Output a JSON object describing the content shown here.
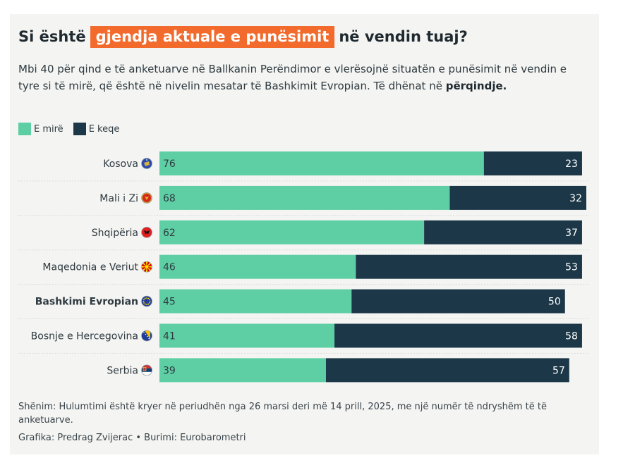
{
  "title": {
    "before": "Si është",
    "highlight": "gjendja aktuale e punësimit",
    "after": "në vendin tuaj?"
  },
  "subtitle": {
    "text": "Mbi 40 për qind e të anketuarve në Ballkanin Perëndimor e vlerësojnë situatën e punësimit në vendin e tyre si të mirë, që është në nivelin mesatar të Bashkimit Evropian. Të dhënat në",
    "bold": "përqindje."
  },
  "colors": {
    "good": "#5ecfa5",
    "bad": "#1c3848",
    "highlight": "#f26b2c",
    "label_light": "#ffffff",
    "label_dark": "#2e3a40"
  },
  "chart_data": {
    "type": "bar",
    "orientation": "horizontal-stacked",
    "categories": [
      "Kosova",
      "Mali i Zi",
      "Shqipëria",
      "Maqedonia e Veriut",
      "Bashkimi Evropian",
      "Bosnje e Hercegovina",
      "Serbia"
    ],
    "flag_icons": [
      "kosovo-flag-icon",
      "montenegro-flag-icon",
      "albania-flag-icon",
      "north-macedonia-flag-icon",
      "eu-flag-icon",
      "bosnia-flag-icon",
      "serbia-flag-icon"
    ],
    "bold_category": "Bashkimi Evropian",
    "series": [
      {
        "name": "E mirë",
        "values": [
          76,
          68,
          62,
          46,
          45,
          41,
          39
        ]
      },
      {
        "name": "E keqe",
        "values": [
          23,
          32,
          37,
          53,
          50,
          58,
          57
        ]
      }
    ],
    "xlim": [
      0,
      100
    ],
    "legend": "top-left"
  },
  "footnote": "Shënim: Hulumtimi është kryer në periudhën nga 26 marsi deri më 14 prill, 2025, me një numër të ndryshëm të të anketuarve.",
  "credit": "Grafika: Predrag Zvijerac • Burimi: Eurobarometri"
}
